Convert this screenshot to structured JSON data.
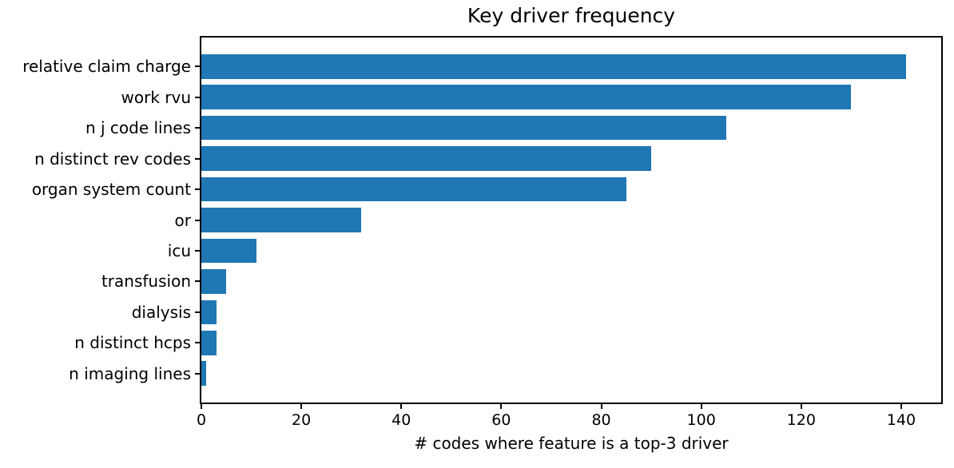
{
  "chart_data": {
    "type": "bar",
    "orientation": "horizontal",
    "title": "Key driver frequency",
    "xlabel": "# codes where feature is a top-3 driver",
    "ylabel": "",
    "categories": [
      "relative claim charge",
      "work rvu",
      "n j code lines",
      "n distinct rev codes",
      "organ system count",
      "or",
      "icu",
      "transfusion",
      "dialysis",
      "n distinct hcps",
      "n imaging lines"
    ],
    "values": [
      141,
      130,
      105,
      90,
      85,
      32,
      11,
      5,
      3,
      3,
      1
    ],
    "xlim": [
      0,
      148
    ],
    "xticks": [
      0,
      20,
      40,
      60,
      80,
      100,
      120,
      140
    ],
    "bar_color": "#1f77b4",
    "axis_color": "#000000",
    "grid": false,
    "bar_height_fraction": 0.8
  }
}
